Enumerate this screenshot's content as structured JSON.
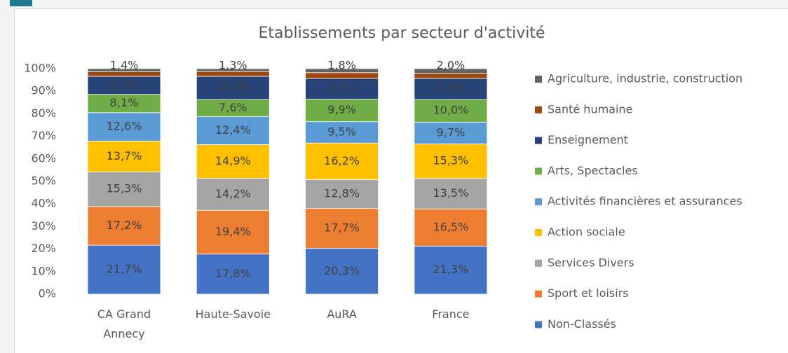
{
  "chart_data": {
    "type": "stacked_bar_percent",
    "title": "Etablissements par secteur d'activité",
    "categories": [
      "CA Grand Annecy",
      "Haute-Savoie",
      "AuRA",
      "France"
    ],
    "ylim": [
      0,
      100
    ],
    "yticks": [
      {
        "value": 0,
        "label": "0%"
      },
      {
        "value": 10,
        "label": "10%"
      },
      {
        "value": 20,
        "label": "20%"
      },
      {
        "value": 30,
        "label": "30%"
      },
      {
        "value": 40,
        "label": "40%"
      },
      {
        "value": 50,
        "label": "50%"
      },
      {
        "value": 60,
        "label": "60%"
      },
      {
        "value": 70,
        "label": "70%"
      },
      {
        "value": 80,
        "label": "80%"
      },
      {
        "value": 90,
        "label": "90%"
      },
      {
        "value": 100,
        "label": "100%"
      }
    ],
    "grid": false,
    "legend": "right",
    "series": [
      {
        "name": "Non-Classés",
        "color": "#4472c4",
        "values": [
          21.7,
          17.8,
          20.3,
          21.3
        ],
        "value_labels": [
          "21,7%",
          "17,8%",
          "20,3%",
          "21,3%"
        ]
      },
      {
        "name": "Sport et loisirs",
        "color": "#ed7d31",
        "values": [
          17.2,
          19.4,
          17.7,
          16.5
        ],
        "value_labels": [
          "17,2%",
          "19,4%",
          "17,7%",
          "16,5%"
        ]
      },
      {
        "name": "Services Divers",
        "color": "#a5a5a5",
        "values": [
          15.3,
          14.2,
          12.8,
          13.5
        ],
        "value_labels": [
          "15,3%",
          "14,2%",
          "12,8%",
          "13,5%"
        ]
      },
      {
        "name": "Action sociale",
        "color": "#ffc000",
        "values": [
          13.7,
          14.9,
          16.2,
          15.3
        ],
        "value_labels": [
          "13,7%",
          "14,9%",
          "16,2%",
          "15,3%"
        ]
      },
      {
        "name": "Activités financières et assurances",
        "color": "#5b9bd5",
        "values": [
          12.6,
          12.4,
          9.5,
          9.7
        ],
        "value_labels": [
          "12,6%",
          "12,4%",
          "9,5%",
          "9,7%"
        ]
      },
      {
        "name": "Arts, Spectacles",
        "color": "#70ad47",
        "values": [
          8.1,
          7.6,
          9.9,
          10.0
        ],
        "value_labels": [
          "8,1%",
          "7,6%",
          "9,9%",
          "10,0%"
        ]
      },
      {
        "name": "Enseignement",
        "color": "#264478",
        "values": [
          8.0,
          10.3,
          9.2,
          9.4
        ],
        "value_labels": [
          "8,0%",
          "10,3%",
          "9,2%",
          "9,4%"
        ]
      },
      {
        "name": "Santé humaine",
        "color": "#9e480e",
        "values": [
          2.0,
          2.1,
          2.6,
          2.3
        ]
      },
      {
        "name": "Agriculture, industrie, construction",
        "color": "#636363",
        "values": [
          1.4,
          1.3,
          1.8,
          2.0
        ],
        "value_labels": [
          "1,4%",
          "1,3%",
          "1,8%",
          "2,0%"
        ]
      }
    ]
  }
}
